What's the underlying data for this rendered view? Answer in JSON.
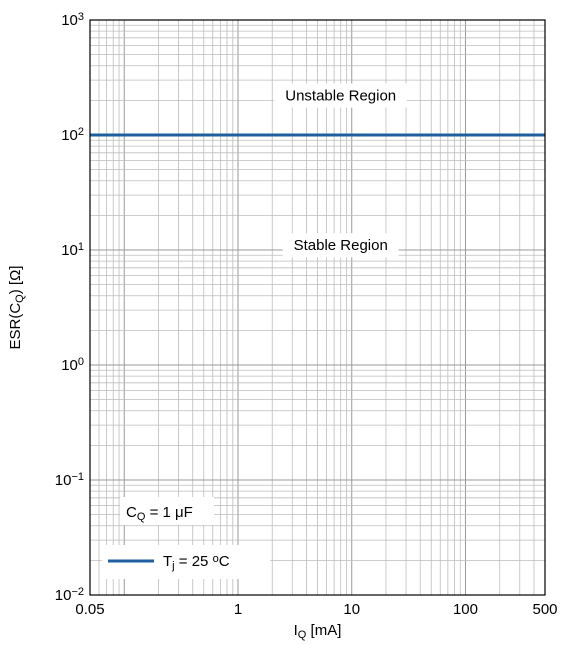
{
  "chart_data": {
    "type": "line",
    "title": "",
    "xscale": "log",
    "yscale": "log",
    "xlim": [
      0.05,
      500
    ],
    "ylim": [
      0.01,
      1000
    ],
    "grid": true,
    "x_ticks": [
      {
        "value": 0.05,
        "label": "0.05"
      },
      {
        "value": 1,
        "label": "1"
      },
      {
        "value": 10,
        "label": "10"
      },
      {
        "value": 100,
        "label": "100"
      },
      {
        "value": 500,
        "label": "500"
      }
    ],
    "y_ticks": [
      {
        "value": 1000,
        "base": "10",
        "exp": "3"
      },
      {
        "value": 100,
        "base": "10",
        "exp": "2"
      },
      {
        "value": 10,
        "base": "10",
        "exp": "1"
      },
      {
        "value": 1,
        "base": "10",
        "exp": "0"
      },
      {
        "value": 0.1,
        "base": "10",
        "exp": "−1"
      },
      {
        "value": 0.01,
        "base": "10",
        "exp": "−2"
      }
    ],
    "xlabel": {
      "main": "I",
      "sub": "Q",
      "rest": " [mA]"
    },
    "ylabel": {
      "main": "ESR(C",
      "sub": "Q",
      "rest": ") [Ω]"
    },
    "series": [
      {
        "legend": {
          "main": "T",
          "sub": "j",
          "mid": " = 25 ",
          "sup": "o",
          "rest": "C"
        },
        "color": "#1f5fa0",
        "x": [
          0.05,
          500
        ],
        "y": [
          100,
          100
        ]
      }
    ],
    "annotations": [
      {
        "text": "Unstable Region",
        "x": 8,
        "y": 220
      },
      {
        "text": "Stable Region",
        "x": 8,
        "y": 11
      }
    ],
    "condition": {
      "main": "C",
      "sub": "Q",
      "rest": " = 1 μF"
    }
  }
}
